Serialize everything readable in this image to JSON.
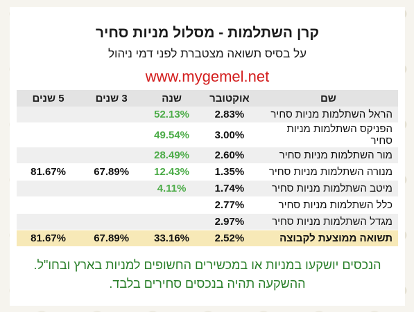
{
  "title": "קרן השתלמות - מסלול מניות סחיר",
  "subtitle": "על בסיס תשואה מצטברת לפני דמי ניהול",
  "website": "www.mygemel.net",
  "colors": {
    "accent_red": "#d31d1d",
    "positive_green": "#4cac48",
    "average_row": "#f7e9b7",
    "footnote_green": "#2a7f2a"
  },
  "table": {
    "headers": {
      "name": "שם",
      "october": "אוקטובר",
      "year": "שנה",
      "three_years": "3 שנים",
      "five_years": "5 שנים"
    },
    "rows": [
      {
        "name": "הראל השתלמות מניות סחיר",
        "october": "2.83%",
        "year": "52.13%",
        "three_years": "",
        "five_years": ""
      },
      {
        "name": "הפניקס השתלמות מניות סחיר",
        "october": "3.00%",
        "year": "49.54%",
        "three_years": "",
        "five_years": ""
      },
      {
        "name": "מור השתלמות מניות סחיר",
        "october": "2.60%",
        "year": "28.49%",
        "three_years": "",
        "five_years": ""
      },
      {
        "name": "מנורה השתלמות מניות סחיר",
        "october": "1.35%",
        "year": "12.43%",
        "three_years": "67.89%",
        "five_years": "81.67%"
      },
      {
        "name": "מיטב השתלמות מניות סחיר",
        "october": "1.74%",
        "year": "4.11%",
        "three_years": "",
        "five_years": ""
      },
      {
        "name": "כלל השתלמות מניות סחיר",
        "october": "2.77%",
        "year": "",
        "three_years": "",
        "five_years": ""
      },
      {
        "name": "מגדל השתלמות מניות סחיר",
        "october": "2.97%",
        "year": "",
        "three_years": "",
        "five_years": ""
      }
    ],
    "average": {
      "name": "תשואה ממוצעת לקבוצה",
      "october": "2.52%",
      "year": "33.16%",
      "three_years": "67.89%",
      "five_years": "81.67%"
    }
  },
  "footnote": "הנכסים יושקעו במניות או במכשירים החשופים למניות בארץ ובחו\"ל. ההשקעה תהיה בנכסים סחירים בלבד."
}
